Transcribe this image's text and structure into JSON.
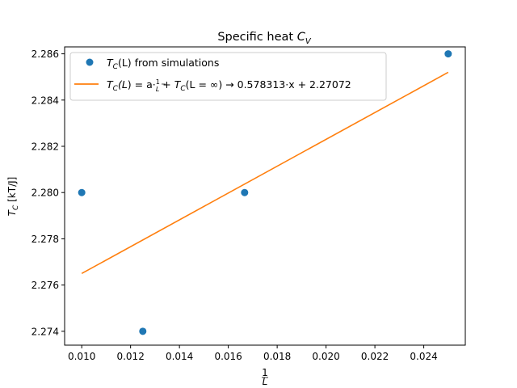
{
  "chart_data": {
    "type": "scatter",
    "title_main": "Specific heat ",
    "title_sym": "C",
    "title_sub": "V",
    "ylabel_sym": "T",
    "ylabel_sub": "C",
    "ylabel_unit": " [kT/J]",
    "xlabel_num": "1",
    "xlabel_den": "L",
    "xlim": [
      0.0093,
      0.0257
    ],
    "ylim": [
      2.2734,
      2.2863
    ],
    "xticks": [
      "0.010",
      "0.012",
      "0.014",
      "0.016",
      "0.018",
      "0.020",
      "0.022",
      "0.024"
    ],
    "xtick_values": [
      0.01,
      0.012,
      0.014,
      0.016,
      0.018,
      0.02,
      0.022,
      0.024
    ],
    "yticks": [
      "2.274",
      "2.276",
      "2.278",
      "2.280",
      "2.282",
      "2.284",
      "2.286"
    ],
    "ytick_values": [
      2.274,
      2.276,
      2.278,
      2.28,
      2.282,
      2.284,
      2.286
    ],
    "grid": false,
    "legend_position": "upper-left",
    "series": [
      {
        "name": "T_C(L) from simulations",
        "kind": "scatter",
        "color": "#1f77b4",
        "x": [
          0.01,
          0.0125,
          0.016667,
          0.025
        ],
        "y": [
          2.28,
          2.274,
          2.28,
          2.286
        ]
      },
      {
        "name": "T_C(L) = a·1/L + T_C(L=∞) → 0.578313·x + 2.27072",
        "kind": "line",
        "color": "#ff7f0e",
        "x": [
          0.01,
          0.025
        ],
        "y": [
          2.2765,
          2.2852
        ]
      }
    ],
    "legend": {
      "scatter_sym": "T",
      "scatter_sub": "C",
      "scatter_rest": "(L) from simulations",
      "line_sym": "T",
      "line_sub": "C",
      "line_mid1": "(L",
      "line_mid1b": ") = a·",
      "line_frac_num": "1",
      "line_frac_den": "L",
      "line_mid2": " + ",
      "line_sym2": "T",
      "line_sub2": "C",
      "line_mid3": "(L = ∞) → 0.578313·x + 2.27072"
    }
  }
}
